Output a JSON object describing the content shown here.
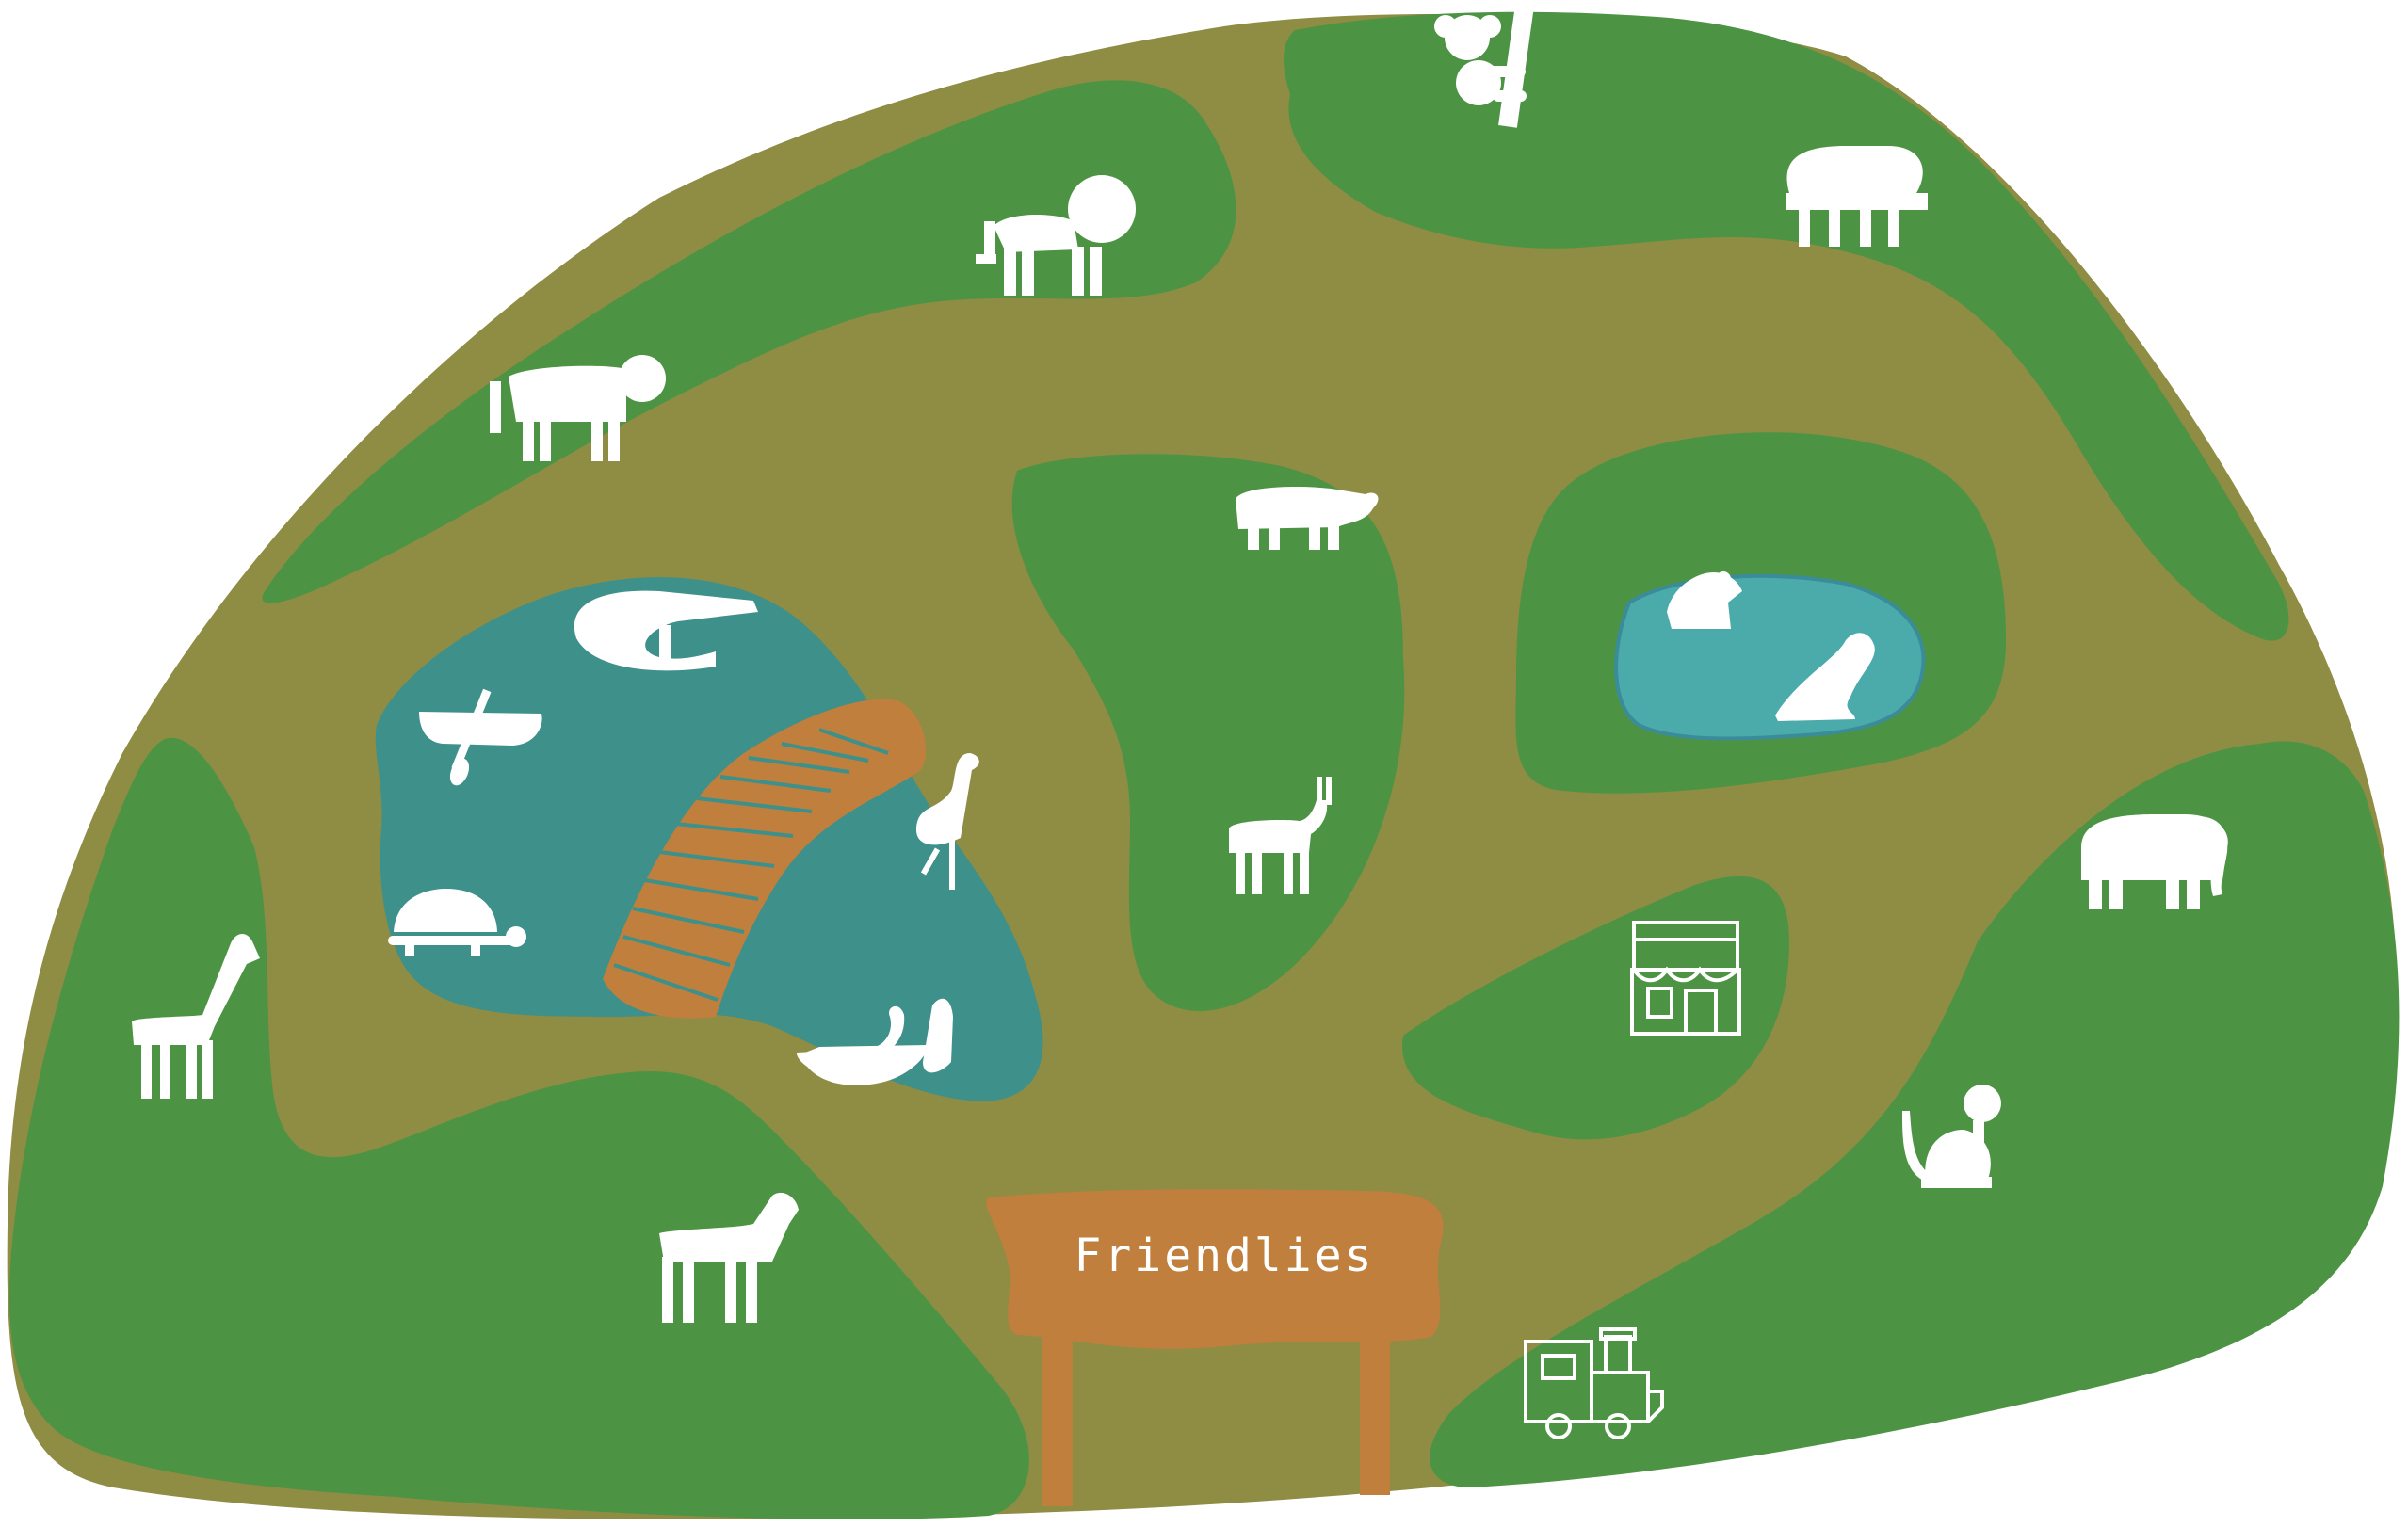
{
  "map": {
    "entrance_sign": {
      "label": "Friendlies"
    }
  },
  "colors": {
    "ground": "#8F8C44",
    "grass": "#4C9443",
    "water": "#3E908A",
    "pond_water": "#4AABAA",
    "pond_edge": "#3B8C9A",
    "bridge": "#C07F3C",
    "sign": "#C07F3C",
    "icon": "#FFFFFF"
  },
  "icons": [
    "koala-icon",
    "sloth-icon",
    "lion-icon",
    "tiger-icon",
    "crocodile-icon",
    "canoe-icon",
    "turtle-icon",
    "flamingo-icon",
    "swan-icon",
    "hippo-icon",
    "antelope-icon",
    "frog-icon",
    "seal-icon",
    "elephant-icon",
    "shop-icon",
    "giraffe-icon",
    "zebra-icon",
    "monkey-icon",
    "train-icon"
  ]
}
